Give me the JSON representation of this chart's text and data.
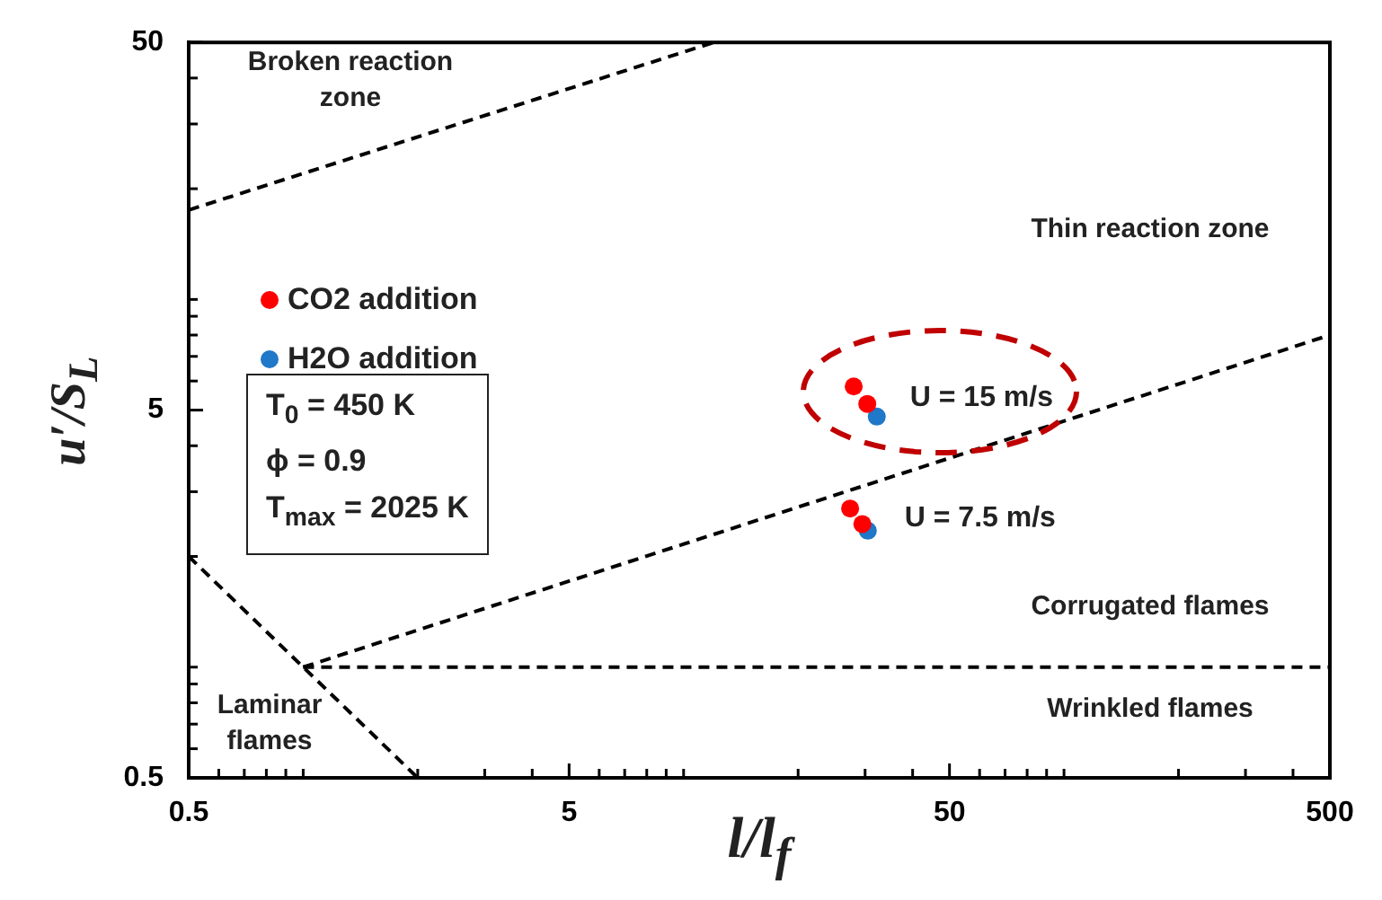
{
  "chart_data": {
    "type": "scatter",
    "xlabel": "l/l$_{f}$",
    "ylabel": "u′/S$_{L}$",
    "log": "xy",
    "grid": false,
    "legend": "left",
    "marker": "circle",
    "xlim": [
      0.5,
      500
    ],
    "ylim": [
      0.5,
      50
    ],
    "xticks": [
      0.5,
      {
        "value": 0.6,
        "label": null
      },
      {
        "value": 0.7,
        "label": null
      },
      {
        "value": 0.8,
        "label": null
      },
      {
        "value": 0.9,
        "label": null
      },
      {
        "value": 1,
        "label": null
      },
      {
        "value": 2,
        "label": null
      },
      {
        "value": 3,
        "label": null
      },
      {
        "value": 4,
        "label": null
      },
      5,
      {
        "value": 6,
        "label": null
      },
      {
        "value": 7,
        "label": null
      },
      {
        "value": 8,
        "label": null
      },
      {
        "value": 9,
        "label": null
      },
      {
        "value": 10,
        "label": null
      },
      {
        "value": 20,
        "label": null
      },
      {
        "value": 30,
        "label": null
      },
      {
        "value": 40,
        "label": null
      },
      50,
      {
        "value": 60,
        "label": null
      },
      {
        "value": 70,
        "label": null
      },
      {
        "value": 80,
        "label": null
      },
      {
        "value": 90,
        "label": null
      },
      {
        "value": 100,
        "label": null
      },
      {
        "value": 200,
        "label": null
      },
      {
        "value": 300,
        "label": null
      },
      {
        "value": 400,
        "label": null
      },
      500
    ],
    "yticks": [
      0.5,
      {
        "value": 0.6,
        "label": null
      },
      {
        "value": 0.7,
        "label": null
      },
      {
        "value": 0.8,
        "label": null
      },
      {
        "value": 0.9,
        "label": null
      },
      {
        "value": 1,
        "label": null
      },
      {
        "value": 2,
        "label": null
      },
      {
        "value": 3,
        "label": null
      },
      {
        "value": 4,
        "label": null
      },
      5,
      {
        "value": 6,
        "label": null
      },
      {
        "value": 7,
        "label": null
      },
      {
        "value": 8,
        "label": null
      },
      {
        "value": 9,
        "label": null
      },
      {
        "value": 10,
        "label": null
      },
      {
        "value": 20,
        "label": null
      },
      {
        "value": 30,
        "label": null
      },
      {
        "value": 40,
        "label": null
      },
      50
    ],
    "series": [
      {
        "type": "line",
        "color": "#000000",
        "line_style": "dashed",
        "marker": "none",
        "x": [
          0.5,
          12
        ],
        "values": [
          17.5,
          50
        ]
      },
      {
        "type": "line",
        "color": "#000000",
        "line_style": "dashed",
        "marker": "none",
        "x": [
          1,
          500
        ],
        "values": [
          1,
          8
        ]
      },
      {
        "type": "line",
        "color": "#000000",
        "line_style": "dashed",
        "marker": "none",
        "x": [
          1,
          500
        ],
        "values": [
          1,
          1
        ]
      },
      {
        "type": "line",
        "color": "#000000",
        "line_style": "dashed",
        "marker": "none",
        "x": [
          0.5,
          2
        ],
        "values": [
          2,
          0.5
        ]
      },
      {
        "name": "CO2 addition",
        "color": "#ff0000",
        "x": [
          28,
          30.4,
          27.4,
          29.5
        ],
        "values": [
          5.8,
          5.2,
          2.7,
          2.45
        ]
      },
      {
        "name": "H2O addition",
        "color": "#1f78c8",
        "x": [
          32.2,
          30.5
        ],
        "values": [
          4.8,
          2.35
        ]
      }
    ],
    "annotations": [
      "Broken reaction zone",
      "Thin reaction zone",
      "Corrugated flames",
      "Wrinkled flames",
      "Laminar flames",
      {
        "text": "U = 15 m/s",
        "x": 31,
        "y": 5.3
      },
      {
        "text": "U = 7.5 m/s",
        "x": 30,
        "y": 2.5
      },
      "T$_{0}$ = 450 K",
      "ϕ = 0.9",
      "T$_{max}$ = 2025 K"
    ]
  }
}
